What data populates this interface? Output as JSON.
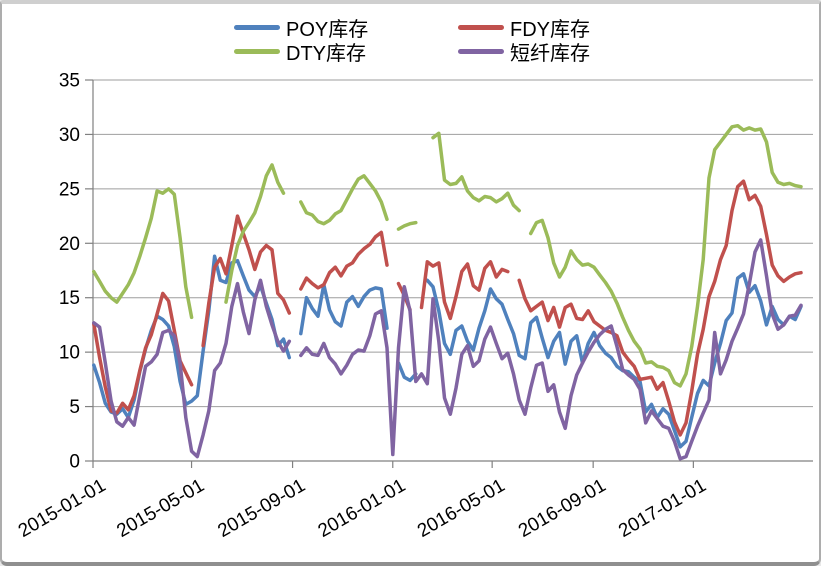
{
  "window": {
    "background": "#ffffff",
    "frame_border_color": "#adadad"
  },
  "legend": {
    "position": "top-center",
    "items": [
      {
        "label": "POY库存",
        "color": "#4F81BD"
      },
      {
        "label": "FDY库存",
        "color": "#C0504D"
      },
      {
        "label": "DTY库存",
        "color": "#9BBB59"
      },
      {
        "label": "短纤库存",
        "color": "#8064A2"
      }
    ]
  },
  "chart_data": {
    "type": "line",
    "title": "",
    "xlabel": "",
    "ylabel": "",
    "ylim": [
      0,
      35
    ],
    "yticks": [
      0,
      5,
      10,
      15,
      20,
      25,
      30,
      35
    ],
    "xtick_labels": [
      "2015-01-01",
      "2015-05-01",
      "2015-09-01",
      "2016-01-01",
      "2016-05-01",
      "2016-09-01",
      "2017-01-01"
    ],
    "x_start_date": "2015-01-01",
    "grid": "horizontal",
    "legend_position": "top",
    "axis_color": "#808080",
    "gridline_color": "#9e9e9e",
    "line_width": 3.5,
    "x_dates": [
      "2015-01-02",
      "2015-01-09",
      "2015-01-16",
      "2015-01-23",
      "2015-01-30",
      "2015-02-06",
      "2015-02-13",
      "2015-02-20",
      "2015-02-27",
      "2015-03-06",
      "2015-03-13",
      "2015-03-20",
      "2015-03-27",
      "2015-04-03",
      "2015-04-10",
      "2015-04-17",
      "2015-04-24",
      "2015-05-01",
      "2015-05-08",
      "2015-05-15",
      "2015-05-22",
      "2015-05-29",
      "2015-06-05",
      "2015-06-12",
      "2015-06-19",
      "2015-06-26",
      "2015-07-03",
      "2015-07-10",
      "2015-07-17",
      "2015-07-24",
      "2015-07-31",
      "2015-08-07",
      "2015-08-14",
      "2015-08-21",
      "2015-08-28",
      "2015-09-04",
      "2015-09-11",
      "2015-09-18",
      "2015-09-25",
      "2015-10-02",
      "2015-10-09",
      "2015-10-16",
      "2015-10-23",
      "2015-10-30",
      "2015-11-06",
      "2015-11-13",
      "2015-11-20",
      "2015-11-27",
      "2015-12-04",
      "2015-12-11",
      "2015-12-18",
      "2015-12-25",
      "2016-01-01",
      "2016-01-08",
      "2016-01-15",
      "2016-01-22",
      "2016-01-29",
      "2016-02-05",
      "2016-02-12",
      "2016-02-19",
      "2016-02-26",
      "2016-03-04",
      "2016-03-11",
      "2016-03-18",
      "2016-03-25",
      "2016-04-01",
      "2016-04-08",
      "2016-04-15",
      "2016-04-22",
      "2016-04-29",
      "2016-05-06",
      "2016-05-13",
      "2016-05-20",
      "2016-05-27",
      "2016-06-03",
      "2016-06-10",
      "2016-06-17",
      "2016-06-24",
      "2016-07-01",
      "2016-07-08",
      "2016-07-15",
      "2016-07-22",
      "2016-07-29",
      "2016-08-05",
      "2016-08-12",
      "2016-08-19",
      "2016-08-26",
      "2016-09-02",
      "2016-09-09",
      "2016-09-16",
      "2016-09-23",
      "2016-09-30",
      "2016-10-07",
      "2016-10-14",
      "2016-10-21",
      "2016-10-28",
      "2016-11-04",
      "2016-11-11",
      "2016-11-18",
      "2016-11-25",
      "2016-12-02",
      "2016-12-09",
      "2016-12-16",
      "2016-12-23",
      "2016-12-30",
      "2017-01-06",
      "2017-01-13",
      "2017-01-20",
      "2017-01-27",
      "2017-02-03",
      "2017-02-10",
      "2017-02-17",
      "2017-02-24",
      "2017-03-03",
      "2017-03-10",
      "2017-03-17",
      "2017-03-24",
      "2017-03-31",
      "2017-04-07",
      "2017-04-14",
      "2017-04-21",
      "2017-04-28",
      "2017-05-05",
      "2017-05-12"
    ],
    "series": [
      {
        "name": "POY库存",
        "color": "#4F81BD",
        "values": [
          8.8,
          7.2,
          5.3,
          4.5,
          4.3,
          4.8,
          4.0,
          5.6,
          8.2,
          10.3,
          12.0,
          13.3,
          13.0,
          12.4,
          10.5,
          7.3,
          5.2,
          5.5,
          6.0,
          10.1,
          13.8,
          18.8,
          16.6,
          16.4,
          18.2,
          18.4,
          17.0,
          15.7,
          15.1,
          16.1,
          14.5,
          13.0,
          10.6,
          11.2,
          9.5,
          null,
          11.7,
          15.0,
          14.0,
          13.3,
          16.2,
          13.9,
          12.8,
          12.4,
          14.6,
          15.1,
          14.2,
          15.1,
          15.7,
          15.9,
          15.8,
          12.2,
          null,
          9.0,
          7.7,
          7.4,
          8.0,
          null,
          16.6,
          16.0,
          13.8,
          10.8,
          9.8,
          12.0,
          12.4,
          11.0,
          10.2,
          12.2,
          13.8,
          15.8,
          14.9,
          14.4,
          13.0,
          11.7,
          9.7,
          9.4,
          12.7,
          13.2,
          11.3,
          9.5,
          11.0,
          11.8,
          8.9,
          11.0,
          11.5,
          9.0,
          10.8,
          11.8,
          10.6,
          9.9,
          9.5,
          8.7,
          8.3,
          8.2,
          7.7,
          7.3,
          4.5,
          5.2,
          4.0,
          4.8,
          4.3,
          2.8,
          1.3,
          1.8,
          4.0,
          6.2,
          7.4,
          6.9,
          9.0,
          10.8,
          12.9,
          13.6,
          16.8,
          17.2,
          15.5,
          16.1,
          14.7,
          12.5,
          14.2,
          13.0,
          12.5,
          13.3,
          13.0,
          14.2
        ]
      },
      {
        "name": "FDY库存",
        "color": "#C0504D",
        "values": [
          12.6,
          9.5,
          6.8,
          4.6,
          4.4,
          5.3,
          4.7,
          6.0,
          8.3,
          10.4,
          11.6,
          13.5,
          15.4,
          14.7,
          12.0,
          9.2,
          8.1,
          7.0,
          null,
          10.6,
          14.5,
          17.8,
          18.6,
          17.2,
          19.8,
          22.5,
          20.9,
          19.4,
          17.6,
          19.2,
          19.8,
          19.4,
          15.4,
          14.8,
          13.6,
          null,
          15.8,
          16.8,
          16.3,
          15.9,
          16.2,
          17.3,
          17.8,
          17.0,
          17.9,
          18.2,
          19.0,
          19.5,
          19.9,
          20.6,
          21.0,
          18.0,
          null,
          16.3,
          15.2,
          13.9,
          null,
          14.1,
          18.3,
          17.9,
          18.2,
          14.6,
          13.1,
          15.1,
          17.4,
          18.1,
          16.1,
          15.7,
          17.7,
          18.3,
          16.9,
          17.6,
          17.4,
          null,
          16.6,
          14.9,
          13.8,
          14.2,
          14.6,
          12.9,
          14.1,
          12.3,
          14.1,
          14.4,
          13.1,
          13.0,
          13.8,
          12.8,
          12.4,
          12.0,
          11.8,
          11.5,
          10.0,
          9.3,
          8.7,
          7.5,
          7.6,
          7.7,
          6.6,
          7.2,
          5.5,
          3.6,
          2.4,
          3.5,
          6.4,
          9.8,
          12.1,
          15.1,
          16.5,
          18.5,
          19.8,
          23.0,
          25.2,
          25.7,
          24.0,
          24.4,
          23.4,
          20.8,
          18.0,
          17.0,
          16.5,
          16.9,
          17.2,
          17.3
        ]
      },
      {
        "name": "DTY库存",
        "color": "#9BBB59",
        "values": [
          17.4,
          16.5,
          15.6,
          15.0,
          14.6,
          15.4,
          16.2,
          17.3,
          18.8,
          20.5,
          22.3,
          24.8,
          24.6,
          25.0,
          24.5,
          20.5,
          16.0,
          13.2,
          null,
          null,
          null,
          null,
          null,
          14.6,
          17.5,
          19.8,
          21.1,
          21.9,
          22.8,
          24.3,
          26.2,
          27.2,
          25.6,
          24.6,
          null,
          null,
          23.8,
          22.8,
          22.6,
          22.0,
          21.8,
          22.1,
          22.7,
          23.0,
          24.0,
          25.0,
          25.9,
          26.2,
          25.5,
          24.8,
          23.8,
          22.2,
          null,
          21.3,
          21.6,
          21.8,
          21.9,
          null,
          null,
          29.7,
          30.1,
          25.8,
          25.4,
          25.5,
          26.1,
          24.8,
          24.2,
          23.9,
          24.3,
          24.2,
          23.8,
          24.1,
          24.6,
          23.5,
          23.0,
          null,
          20.9,
          21.9,
          22.1,
          20.5,
          18.2,
          16.9,
          17.8,
          19.3,
          18.5,
          18.0,
          18.1,
          17.8,
          17.1,
          16.4,
          15.6,
          14.5,
          13.2,
          12.0,
          11.0,
          10.3,
          9.0,
          9.1,
          8.7,
          8.6,
          8.3,
          7.2,
          6.9,
          8.0,
          10.5,
          14.2,
          18.5,
          26.0,
          28.6,
          29.3,
          30.0,
          30.7,
          30.8,
          30.4,
          30.6,
          30.4,
          30.5,
          29.3,
          26.5,
          25.6,
          25.4,
          25.5,
          25.3,
          25.2
        ]
      },
      {
        "name": "短纤库存",
        "color": "#8064A2",
        "values": [
          12.7,
          12.3,
          9.0,
          5.5,
          3.6,
          3.2,
          4.0,
          3.3,
          6.0,
          8.7,
          9.1,
          9.8,
          11.8,
          12.0,
          11.5,
          9.0,
          4.0,
          0.9,
          0.4,
          2.4,
          4.6,
          8.3,
          9.0,
          10.8,
          14.2,
          16.3,
          13.7,
          11.7,
          14.8,
          16.6,
          14.2,
          12.5,
          11.0,
          10.1,
          11.0,
          null,
          9.7,
          10.4,
          9.8,
          9.7,
          10.8,
          9.5,
          8.9,
          8.0,
          8.8,
          9.8,
          10.2,
          10.1,
          11.5,
          13.5,
          13.8,
          10.4,
          0.6,
          10.4,
          16.0,
          13.8,
          7.3,
          8.0,
          7.1,
          14.9,
          11.0,
          5.8,
          4.3,
          6.7,
          9.8,
          10.6,
          8.7,
          9.2,
          11.2,
          12.3,
          10.8,
          9.4,
          9.9,
          8.0,
          5.6,
          4.3,
          6.7,
          8.8,
          9.0,
          6.4,
          7.0,
          4.5,
          3.0,
          6.0,
          7.9,
          9.0,
          10.0,
          10.9,
          11.6,
          12.1,
          12.4,
          10.5,
          8.4,
          7.9,
          7.5,
          6.6,
          3.5,
          4.6,
          3.9,
          3.2,
          3.0,
          1.8,
          0.2,
          0.4,
          1.8,
          3.2,
          4.4,
          5.6,
          11.8,
          8.0,
          9.3,
          11.0,
          12.2,
          13.5,
          16.2,
          19.2,
          20.3,
          17.0,
          13.5,
          12.1,
          12.5,
          13.3,
          13.4,
          14.3
        ]
      }
    ]
  }
}
